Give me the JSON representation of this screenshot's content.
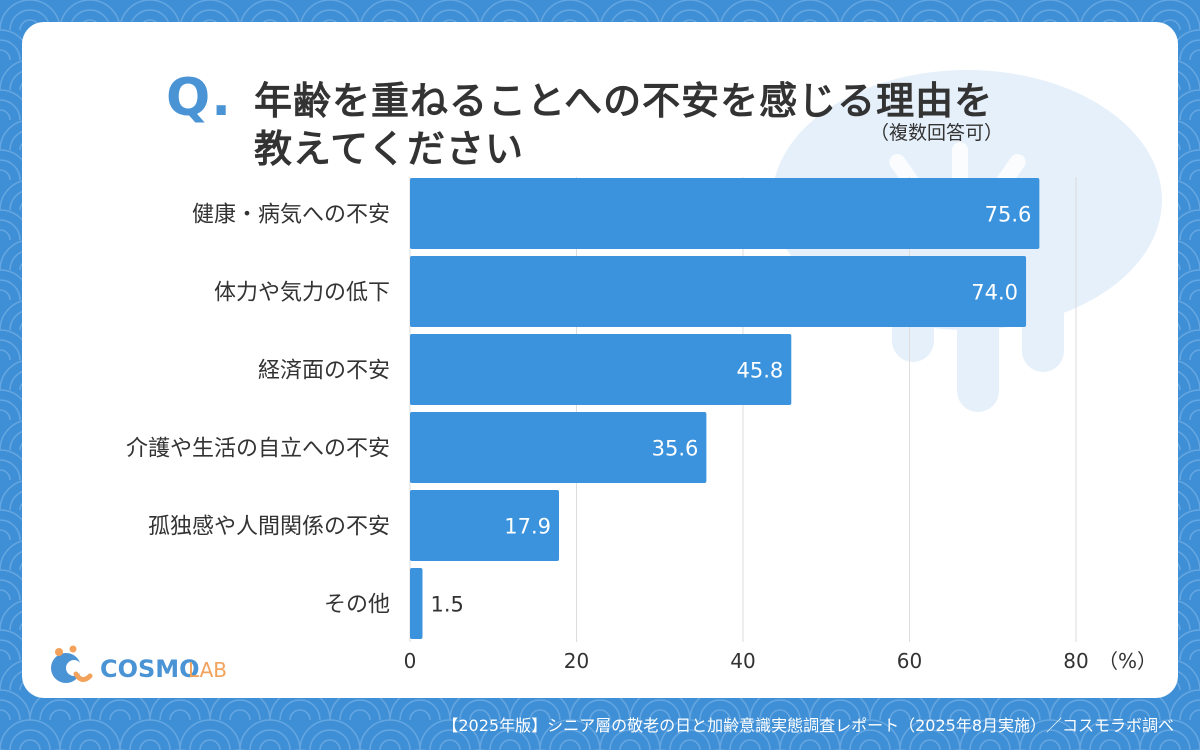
{
  "title": {
    "q_mark": "Q.",
    "line1": "年齢を重ねることへの不安を感じる理由を",
    "line2": "教えてください",
    "note": "（複数回答可）"
  },
  "chart_data": {
    "type": "bar",
    "orientation": "horizontal",
    "categories": [
      "健康・病気への不安",
      "体力や気力の低下",
      "経済面の不安",
      "介護や生活の自立への不安",
      "孤独感や人間関係の不安",
      "その他"
    ],
    "values": [
      75.6,
      74.0,
      45.8,
      35.6,
      17.9,
      1.5
    ],
    "value_labels": [
      "75.6",
      "74.0",
      "45.8",
      "35.6",
      "17.9",
      "1.5"
    ],
    "x_ticks": [
      0,
      20,
      40,
      60,
      80
    ],
    "x_tick_labels": [
      "0",
      "20",
      "40",
      "60",
      "80"
    ],
    "x_unit": "（%）",
    "xlim": [
      0,
      80
    ],
    "grid": true,
    "bar_color": "#3a93dc"
  },
  "logo": {
    "name_part1": "COSMO",
    "name_part2": "LAB",
    "primary_color": "#4a93d4",
    "accent_color": "#f2a25b"
  },
  "footer": {
    "source": "【2025年版】シニア層の敬老の日と加齢意識実態調査レポート（2025年8月実施）／コスモラボ調べ"
  },
  "colors": {
    "background": "#3f8fd6",
    "card": "#ffffff",
    "text": "#333333"
  }
}
